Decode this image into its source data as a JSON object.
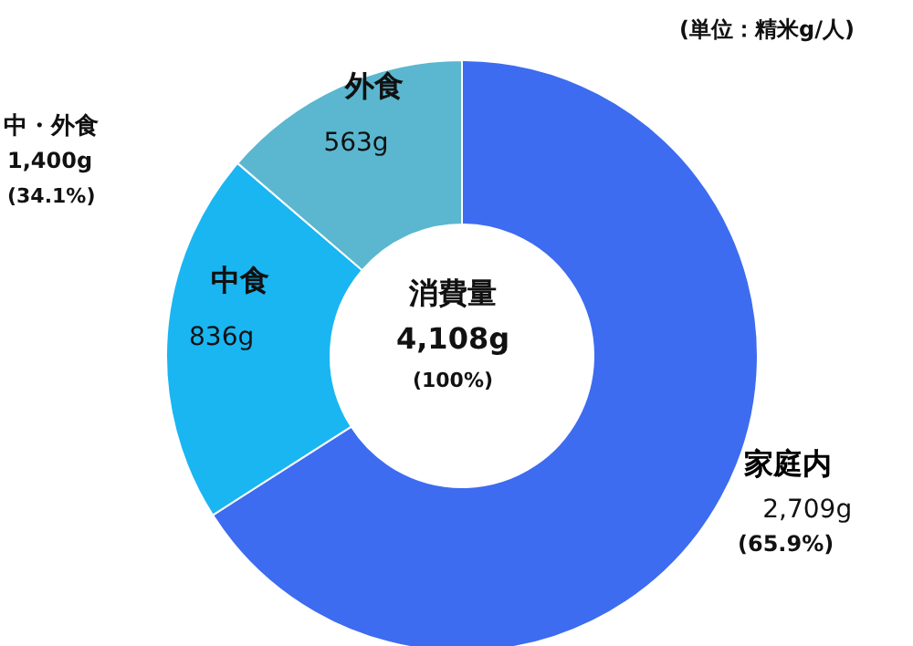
{
  "chart_data": {
    "type": "donut",
    "categories": [
      "家庭内",
      "中食",
      "外食"
    ],
    "values": [
      2709,
      836,
      563
    ],
    "colors": [
      "#3d6cf0",
      "#19b6f2",
      "#5ab7cf"
    ],
    "value_labels": [
      "2,709g",
      "836g",
      "563g"
    ],
    "annotations": [
      "(65.9%)",
      "中・外食",
      "1,400g",
      "(34.1%)",
      "消費量",
      "4,108g",
      "(100%)",
      "(単位：精米g/人)"
    ]
  }
}
